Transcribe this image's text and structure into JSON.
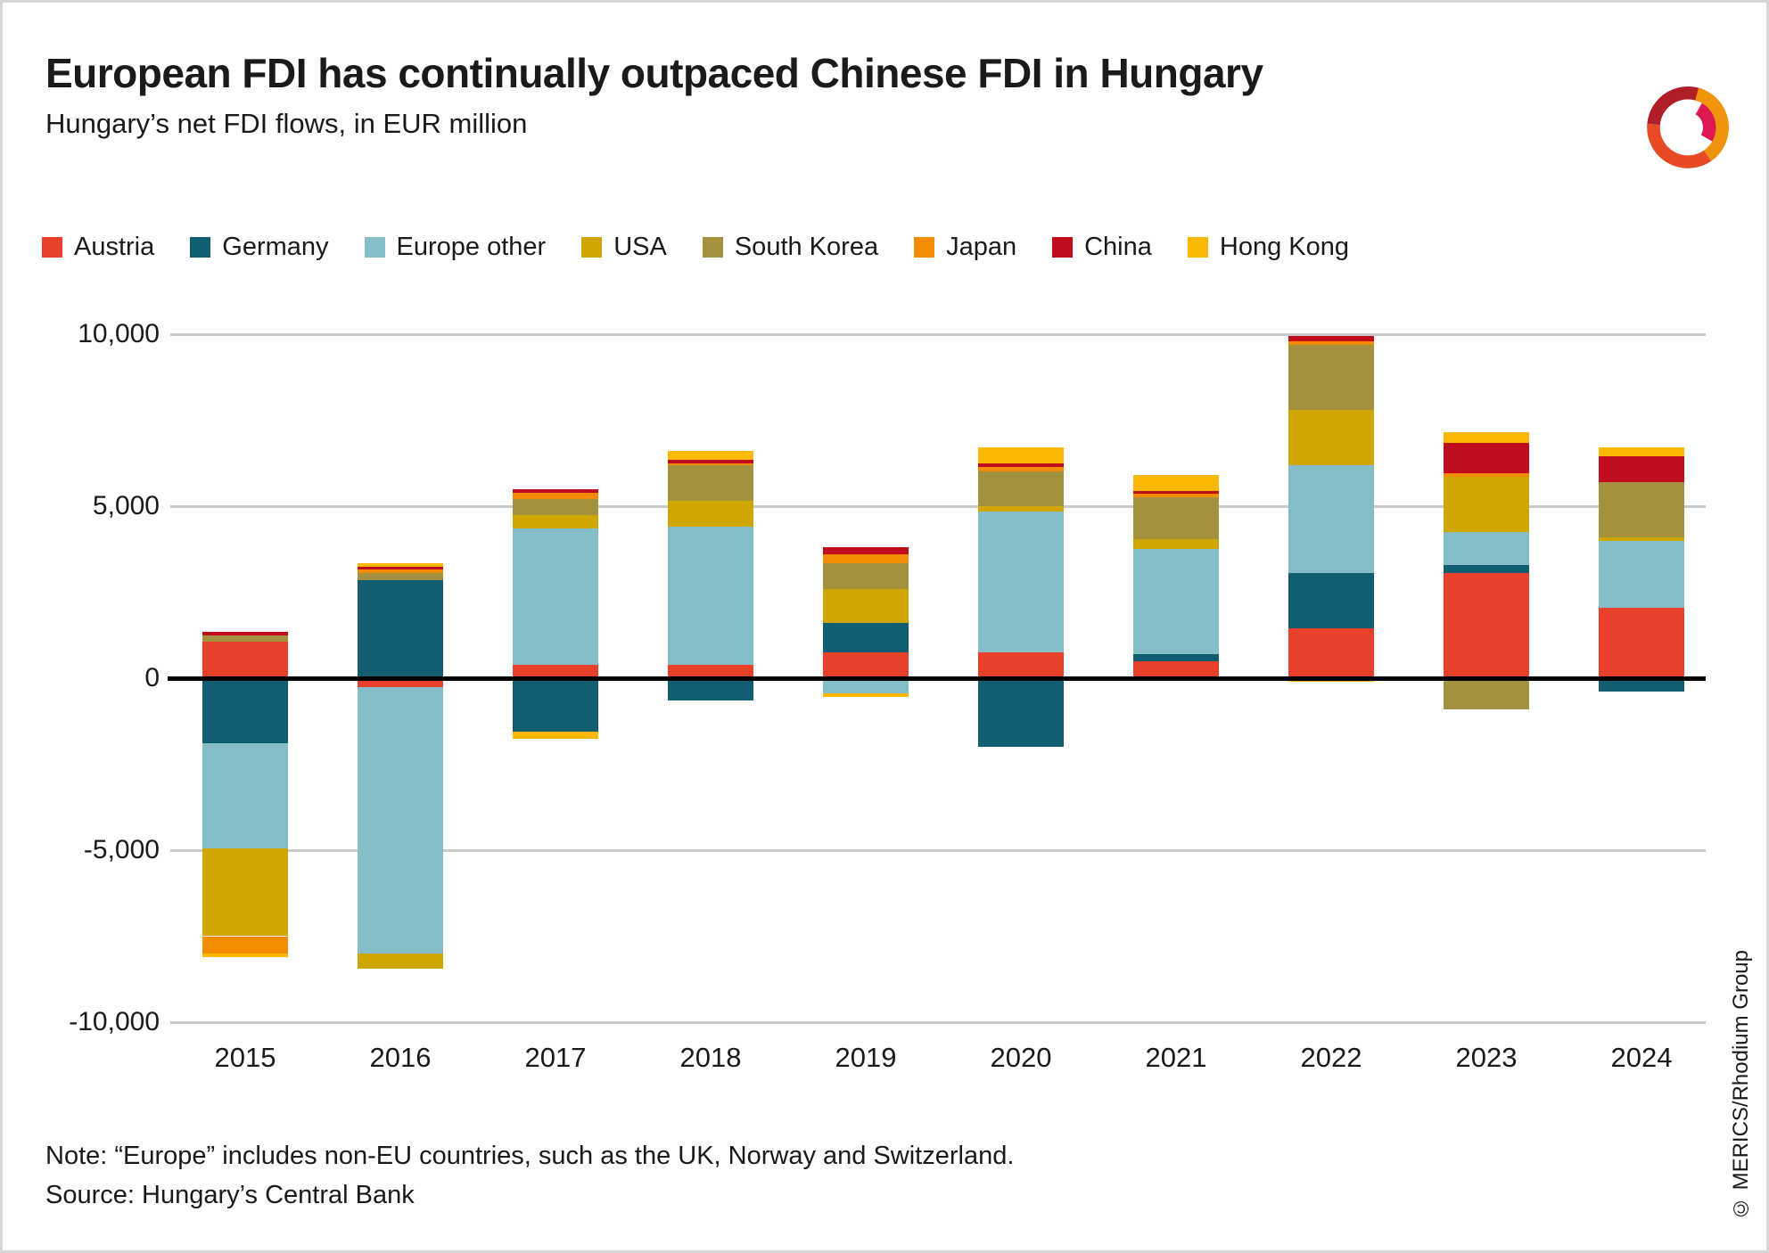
{
  "header": {
    "title": "European FDI has continually outpaced Chinese FDI in Hungary",
    "subtitle": "Hungary’s net FDI flows, in EUR million"
  },
  "chart_data": {
    "type": "bar",
    "stacked": true,
    "title": "European FDI has continually outpaced Chinese FDI in Hungary",
    "subtitle": "Hungary’s net FDI flows, in EUR million",
    "unit": "EUR million",
    "categories": [
      "2015",
      "2016",
      "2017",
      "2018",
      "2019",
      "2020",
      "2021",
      "2022",
      "2023",
      "2024"
    ],
    "series": [
      {
        "name": "Austria",
        "color": "#e8402b",
        "values": [
          1050,
          -250,
          400,
          400,
          750,
          750,
          500,
          1450,
          3050,
          2050
        ]
      },
      {
        "name": "Germany",
        "color": "#115e72",
        "values": [
          -1900,
          2850,
          -1550,
          -650,
          850,
          -2000,
          200,
          1600,
          250,
          -400
        ]
      },
      {
        "name": "Europe other",
        "color": "#85bdc8",
        "values": [
          -3050,
          -7750,
          3950,
          4000,
          -450,
          4100,
          3050,
          3150,
          950,
          1950
        ]
      },
      {
        "name": "USA",
        "color": "#cfa602",
        "values": [
          -2550,
          -450,
          400,
          750,
          1000,
          150,
          300,
          1600,
          1600,
          100
        ]
      },
      {
        "name": "South Korea",
        "color": "#a3913f",
        "values": [
          200,
          200,
          450,
          1050,
          750,
          1000,
          1200,
          1900,
          -900,
          1600
        ]
      },
      {
        "name": "Japan",
        "color": "#f28c00",
        "values": [
          -500,
          100,
          200,
          50,
          250,
          150,
          100,
          100,
          100,
          0
        ]
      },
      {
        "name": "China",
        "color": "#c00d1e",
        "values": [
          100,
          100,
          100,
          100,
          200,
          100,
          100,
          150,
          900,
          750
        ]
      },
      {
        "name": "Hong Kong",
        "color": "#fcb800",
        "values": [
          -100,
          100,
          -200,
          250,
          -100,
          450,
          450,
          -100,
          300,
          250
        ]
      }
    ],
    "ylim": [
      -10000,
      10000
    ],
    "yticks": [
      {
        "value": 10000,
        "label": "10,000"
      },
      {
        "value": 5000,
        "label": "5,000"
      },
      {
        "value": 0,
        "label": "0"
      },
      {
        "value": -5000,
        "label": "-5,000"
      },
      {
        "value": -10000,
        "label": "-10,000"
      }
    ],
    "grid": true,
    "legend_position": "top"
  },
  "footer": {
    "note": "Note: “Europe” includes non-EU countries, such as the UK, Norway and Switzerland.",
    "source": "Source: Hungary’s Central Bank",
    "copyright": "© MERICS/Rhodium Group"
  },
  "logo": {
    "name": "MERICS logo",
    "colors": {
      "dark_red": "#b01e28",
      "magenta": "#dd1951",
      "red_orange": "#e84a26",
      "orange": "#f2930d"
    }
  }
}
